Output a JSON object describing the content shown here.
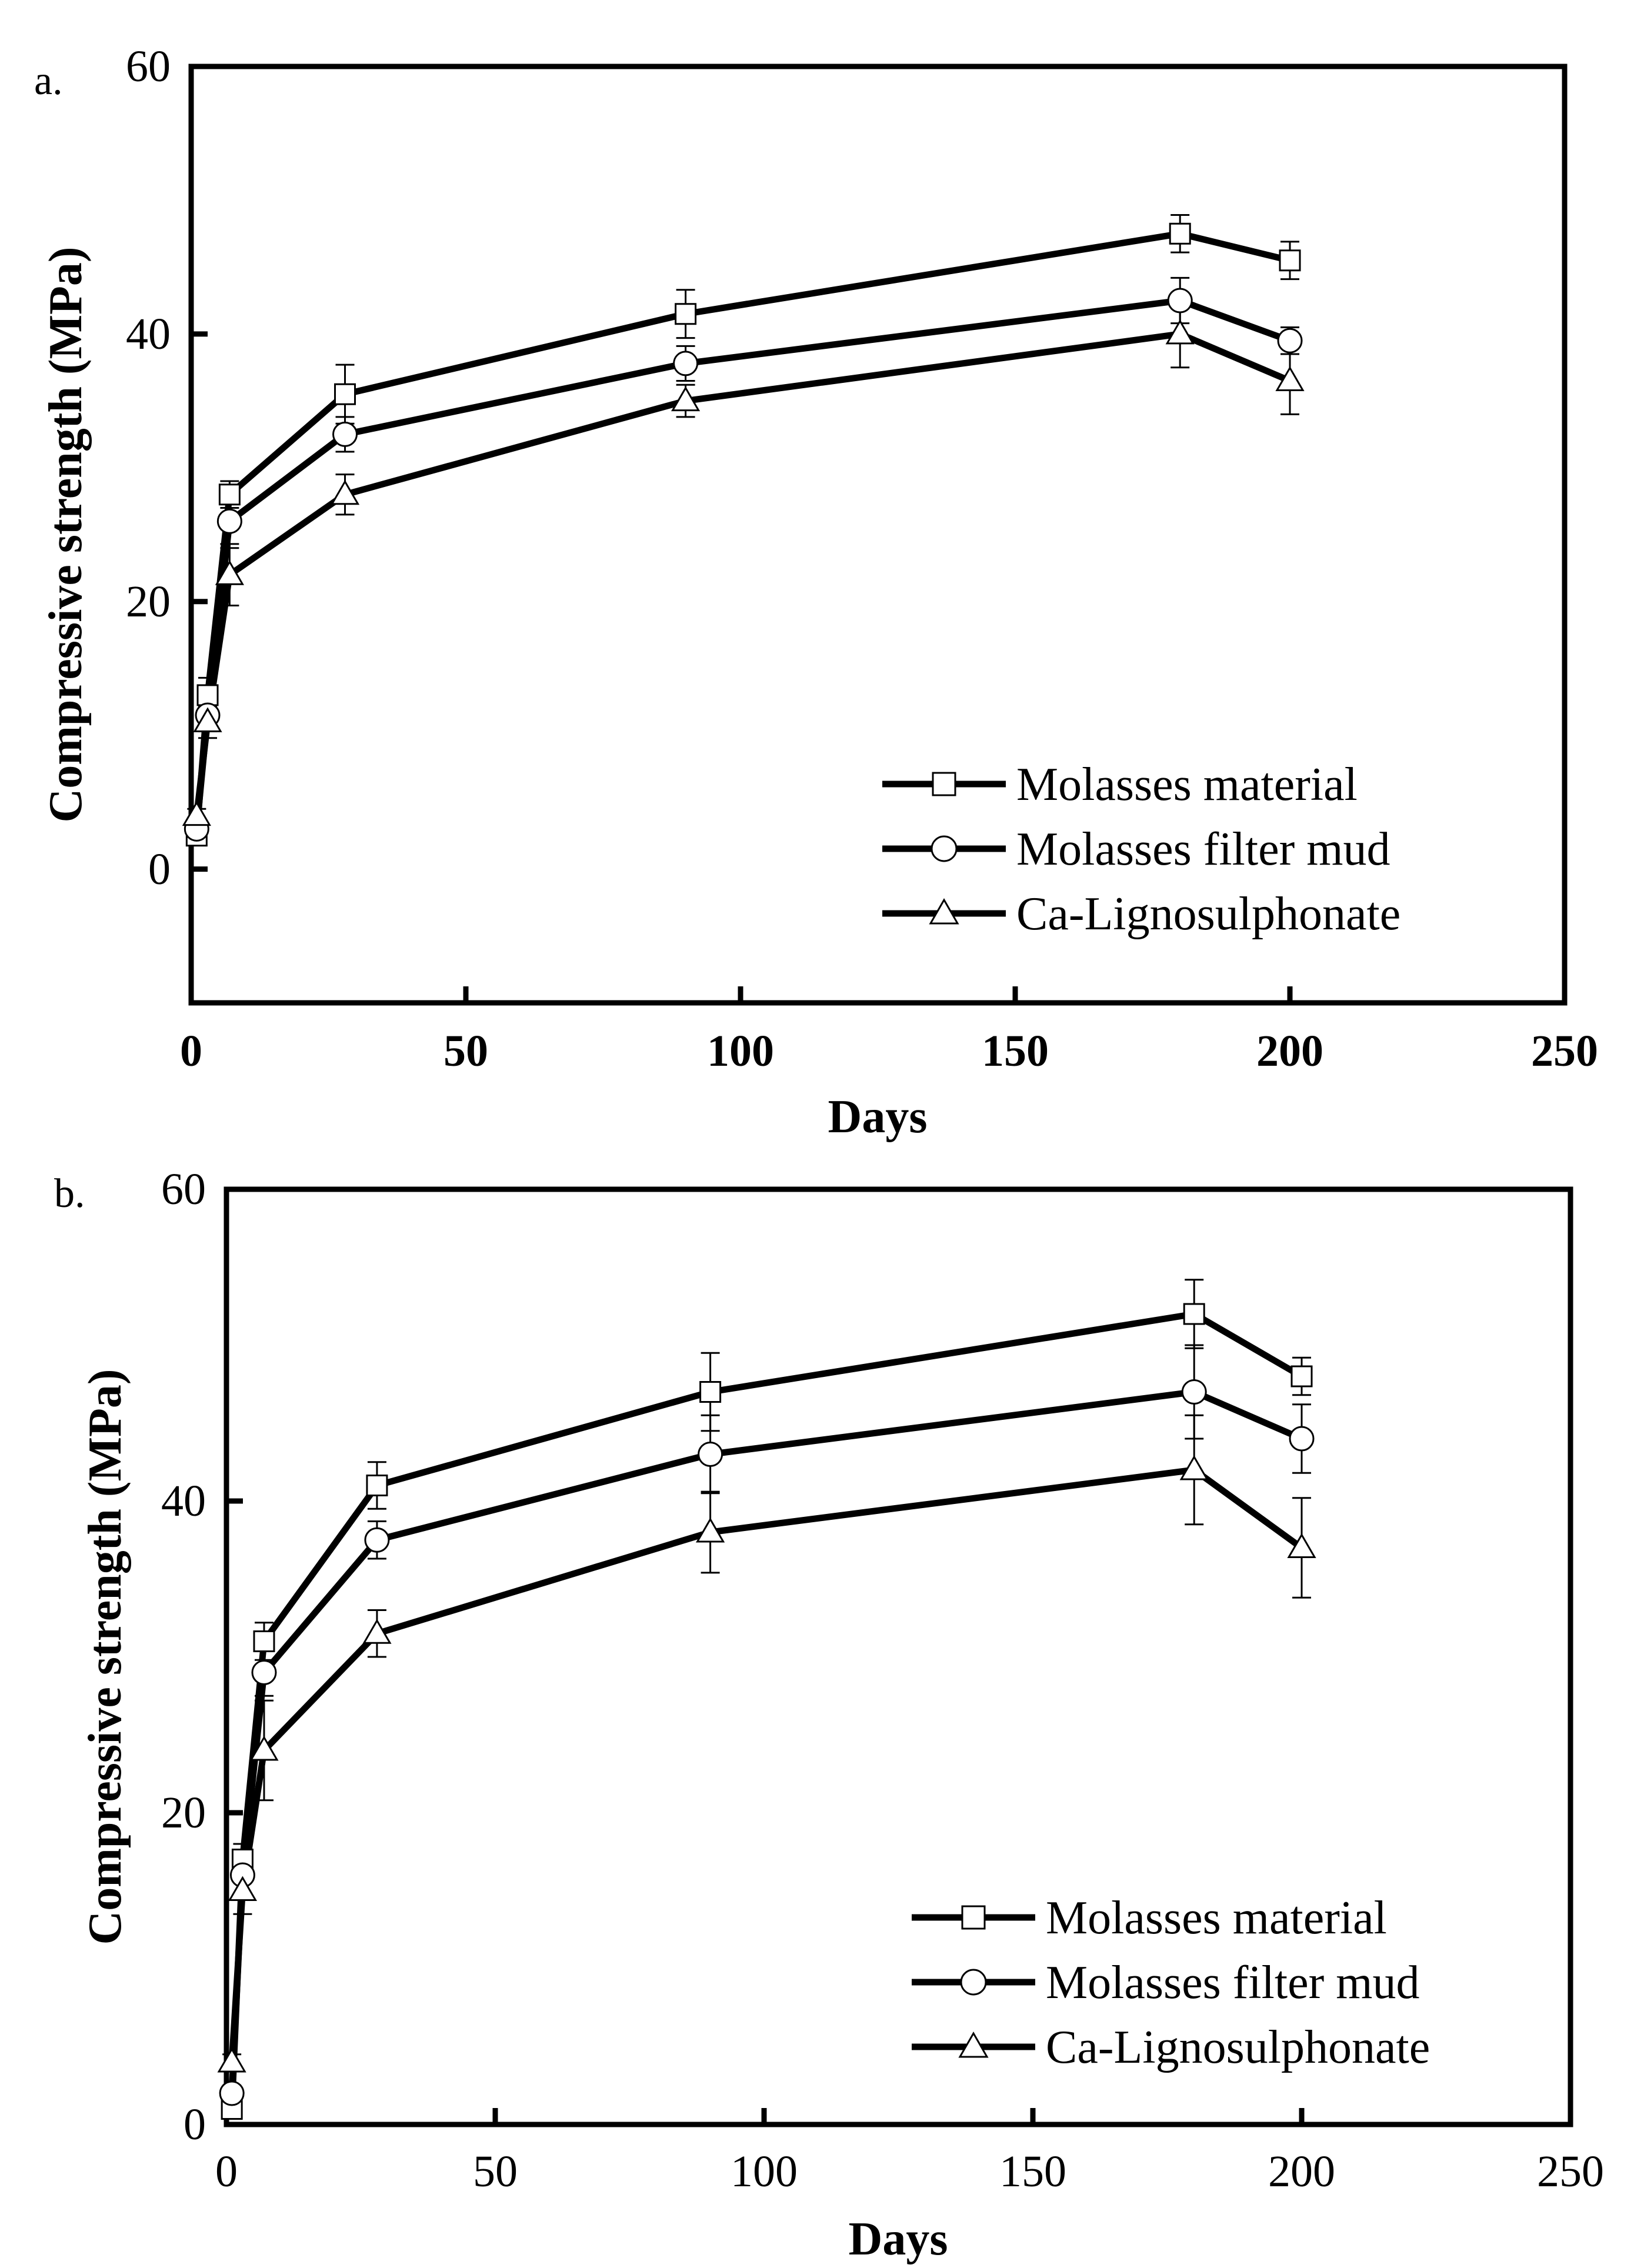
{
  "chart_data": [
    {
      "type": "line",
      "panel_label": "a.",
      "xlabel": "Days",
      "ylabel": "Compressive strength (MPa)",
      "xlim": [
        0,
        250
      ],
      "ylim": [
        -10,
        60
      ],
      "xticks": [
        "0",
        "50",
        "100",
        "150",
        "200",
        "250"
      ],
      "yticks": [
        "0",
        "20",
        "40",
        "60"
      ],
      "x": [
        1,
        3,
        7,
        28,
        90,
        180,
        200
      ],
      "series": [
        {
          "name": "Molasses material",
          "marker": "square",
          "values": [
            2.5,
            13,
            28,
            35.5,
            41.5,
            47.5,
            45.5
          ],
          "errors": [
            0.5,
            1.3,
            1.0,
            2.2,
            1.8,
            1.4,
            1.4
          ]
        },
        {
          "name": "Molasses filter mud",
          "marker": "circle",
          "values": [
            3.0,
            11.5,
            26,
            32.5,
            37.8,
            42.5,
            39.5
          ],
          "errors": [
            0.5,
            1.2,
            2.0,
            1.3,
            1.3,
            1.7,
            1.0
          ]
        },
        {
          "name": "Ca-Lignosulphonate",
          "marker": "triangle",
          "values": [
            4.0,
            11.0,
            22,
            28,
            35,
            40,
            36.5
          ],
          "errors": [
            0.5,
            1.2,
            2.3,
            1.5,
            1.2,
            2.5,
            2.5
          ]
        }
      ],
      "legend": "bottom-right"
    },
    {
      "type": "line",
      "panel_label": "b.",
      "xlabel": "Days",
      "ylabel": "Compressive strength (MPa)",
      "xlim": [
        0,
        250
      ],
      "ylim": [
        0,
        60
      ],
      "xticks": [
        "0",
        "50",
        "100",
        "150",
        "200",
        "250"
      ],
      "yticks": [
        "0",
        "20",
        "40",
        "60"
      ],
      "x": [
        1,
        3,
        7,
        28,
        90,
        180,
        200
      ],
      "series": [
        {
          "name": "Molasses material",
          "marker": "square",
          "values": [
            1.0,
            17,
            31,
            41,
            47,
            52,
            48
          ],
          "errors": [
            0.5,
            1.0,
            1.2,
            1.5,
            2.5,
            2.2,
            1.2
          ]
        },
        {
          "name": "Molasses filter mud",
          "marker": "circle",
          "values": [
            2.0,
            16,
            29,
            37.5,
            43,
            47,
            44
          ],
          "errors": [
            0.5,
            1.5,
            1.5,
            1.2,
            2.5,
            3.0,
            2.2
          ]
        },
        {
          "name": "Ca-Lignosulphonate",
          "marker": "triangle",
          "values": [
            4.0,
            15,
            24,
            31.5,
            38,
            42,
            37
          ],
          "errors": [
            0.5,
            1.5,
            3.2,
            1.5,
            2.6,
            3.5,
            3.2
          ]
        }
      ],
      "legend": "bottom-right"
    }
  ]
}
